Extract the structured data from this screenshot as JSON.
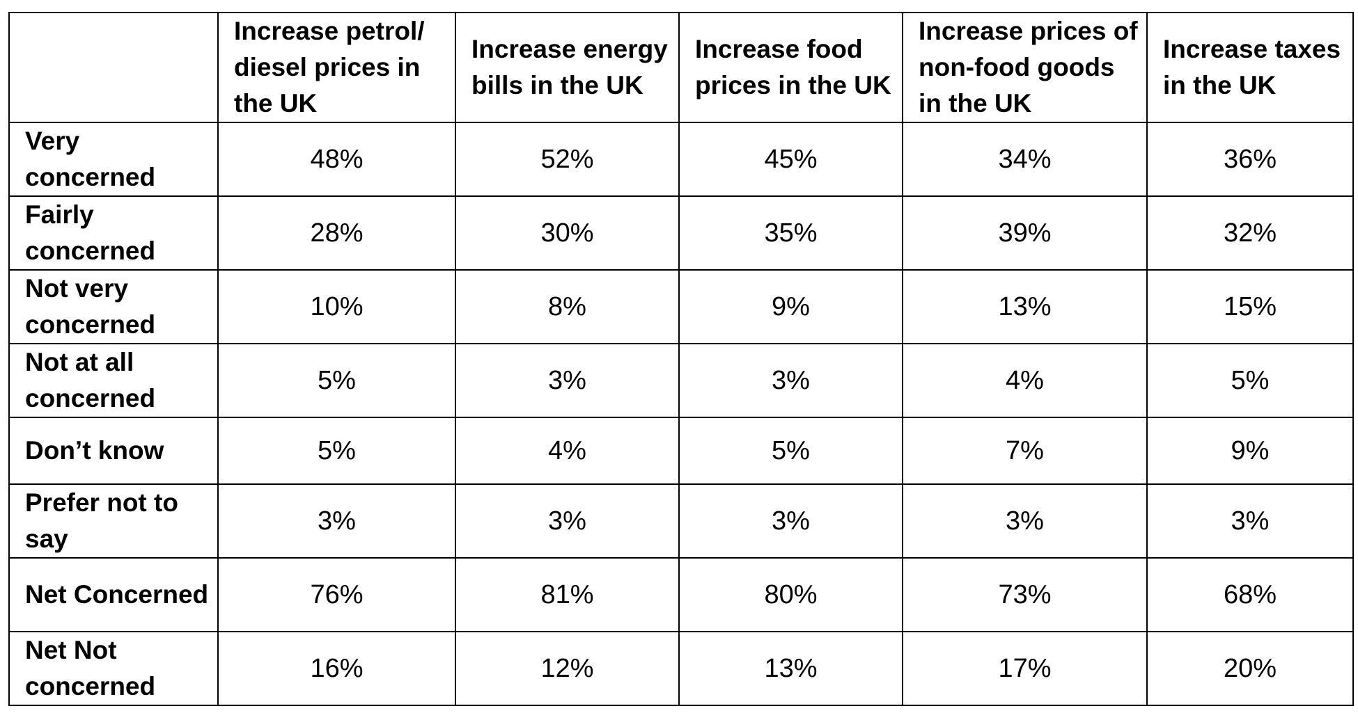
{
  "table": {
    "corner": "",
    "columns": [
      "Increase petrol/ diesel prices in the UK",
      "Increase energy bills in the UK",
      "Increase food prices in the UK",
      "Increase prices of non-food goods in the UK",
      "Increase taxes in the UK"
    ],
    "rows": [
      {
        "label": "Very concerned",
        "values": [
          "48%",
          "52%",
          "45%",
          "34%",
          "36%"
        ]
      },
      {
        "label": "Fairly concerned",
        "values": [
          "28%",
          "30%",
          "35%",
          "39%",
          "32%"
        ]
      },
      {
        "label": "Not very concerned",
        "values": [
          "10%",
          "8%",
          "9%",
          "13%",
          "15%"
        ]
      },
      {
        "label": "Not at all concerned",
        "values": [
          "5%",
          "3%",
          "3%",
          "4%",
          "5%"
        ]
      },
      {
        "label": "Don’t know",
        "values": [
          "5%",
          "4%",
          "5%",
          "7%",
          "9%"
        ]
      },
      {
        "label": "Prefer not to say",
        "values": [
          "3%",
          "3%",
          "3%",
          "3%",
          "3%"
        ]
      },
      {
        "label": "Net Concerned",
        "values": [
          "76%",
          "81%",
          "80%",
          "73%",
          "68%"
        ]
      },
      {
        "label": "Net Not concerned",
        "values": [
          "16%",
          "12%",
          "13%",
          "17%",
          "20%"
        ]
      }
    ]
  }
}
